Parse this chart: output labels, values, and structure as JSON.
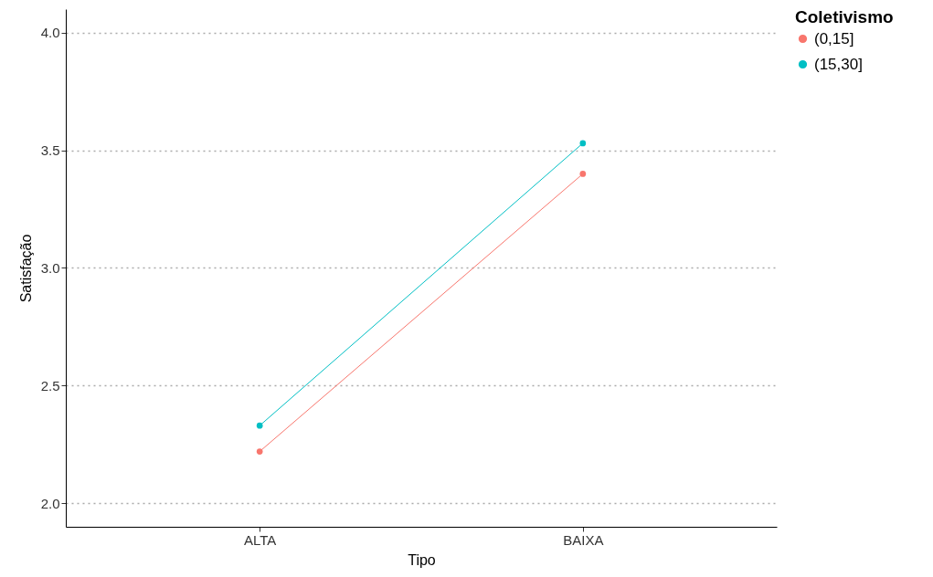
{
  "chart_data": {
    "type": "line",
    "xlabel": "Tipo",
    "ylabel": "Satisfação",
    "legend_title": "Coletivismo",
    "categories": [
      "ALTA",
      "BAIXA"
    ],
    "series": [
      {
        "name": "(0,15]",
        "color": "#f8766d",
        "values": [
          2.22,
          3.4
        ]
      },
      {
        "name": "(15,30]",
        "color": "#00bfc4",
        "values": [
          2.33,
          3.53
        ]
      }
    ],
    "ylim": [
      1.9,
      4.1
    ],
    "yticks": [
      {
        "value": 2,
        "label": "2.0"
      },
      {
        "value": 2.5,
        "label": "2.5"
      },
      {
        "value": 3,
        "label": "3.0"
      },
      {
        "value": 3.5,
        "label": "3.5"
      },
      {
        "value": 4,
        "label": "4.0"
      }
    ],
    "grid": "y",
    "legend": "right",
    "marker": "circle"
  }
}
